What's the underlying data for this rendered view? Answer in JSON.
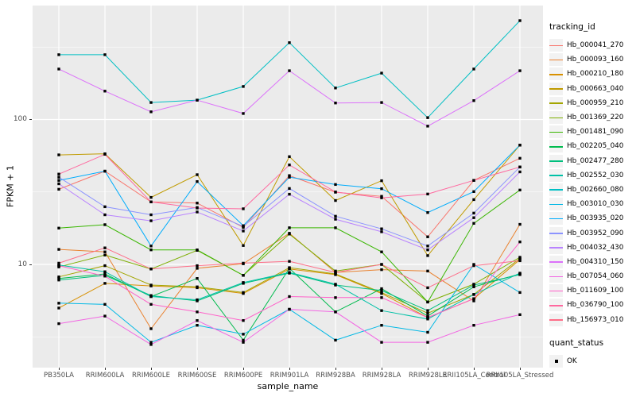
{
  "chart_data": {
    "type": "line",
    "title": "",
    "xlabel": "sample_name",
    "ylabel": "FPKM + 1",
    "y_scale": "log10",
    "ylim": [
      1.94,
      611
    ],
    "y_major_ticks": [
      10,
      100
    ],
    "y_minor_gridlines": [
      3.162,
      31.62,
      316.2
    ],
    "grid": "white-on-gray",
    "panel_bg": "#EBEBEB",
    "grid_color": "#FFFFFF",
    "marker": "black-square",
    "categories": [
      "PB350LA",
      "RRIM600LA",
      "RRIM600LE",
      "RRIM600SE",
      "RRIM600PE",
      "RRIM901LA",
      "RRIM928BA",
      "RRIM928LA",
      "RRIM928LE",
      "RRII105LA_Control",
      "RRII105LA_Stressed"
    ],
    "series": [
      {
        "name": "Hb_000041_270",
        "color": "#F8766D",
        "values": [
          33,
          44,
          27,
          26.5,
          18,
          41,
          31.5,
          29.5,
          15.5,
          38,
          54
        ]
      },
      {
        "name": "Hb_000093_160",
        "color": "#EA8331",
        "values": [
          12.7,
          12.2,
          3.6,
          9.4,
          10.1,
          16.4,
          8.8,
          9.2,
          9.0,
          5.6,
          18.9
        ]
      },
      {
        "name": "Hb_000210_180",
        "color": "#D89000",
        "values": [
          5.0,
          7.4,
          7.1,
          6.9,
          6.3,
          9.3,
          8.5,
          6.3,
          4.3,
          5.8,
          10.8
        ]
      },
      {
        "name": "Hb_000663_040",
        "color": "#C09B00",
        "values": [
          57,
          58,
          29,
          41.6,
          13.5,
          55.4,
          27.6,
          37.8,
          11.5,
          28,
          66.5
        ]
      },
      {
        "name": "Hb_000959_210",
        "color": "#A3A500",
        "values": [
          8.2,
          9.8,
          7.2,
          7.0,
          6.4,
          9.5,
          8.6,
          6.4,
          4.6,
          6.2,
          11.0
        ]
      },
      {
        "name": "Hb_001369_220",
        "color": "#7CAE00",
        "values": [
          9.6,
          11.6,
          9.3,
          12.5,
          8.4,
          16.2,
          9.0,
          10.0,
          5.5,
          7.3,
          11.2
        ]
      },
      {
        "name": "Hb_001481_090",
        "color": "#39B600",
        "values": [
          17.8,
          18.8,
          12.6,
          12.6,
          8.4,
          17.9,
          17.9,
          12.2,
          5.5,
          19.2,
          32.6
        ]
      },
      {
        "name": "Hb_002205_040",
        "color": "#00BB4E",
        "values": [
          8.0,
          8.6,
          6.0,
          8.0,
          3.0,
          9.4,
          4.7,
          6.8,
          4.4,
          7.0,
          8.6
        ]
      },
      {
        "name": "Hb_002477_280",
        "color": "#00BF7D",
        "values": [
          7.8,
          8.4,
          6.1,
          5.6,
          7.4,
          8.7,
          7.2,
          6.6,
          4.8,
          7.2,
          8.5
        ]
      },
      {
        "name": "Hb_002552_030",
        "color": "#00C1A7",
        "values": [
          9.9,
          8.9,
          6.0,
          5.7,
          7.5,
          8.8,
          7.3,
          4.8,
          4.2,
          6.2,
          8.7
        ]
      },
      {
        "name": "Hb_002660_080",
        "color": "#00BFC4",
        "values": [
          280,
          280,
          131,
          136,
          169,
          339,
          165,
          209,
          103,
          223,
          481
        ]
      },
      {
        "name": "Hb_003010_030",
        "color": "#00B8E5",
        "values": [
          5.4,
          5.3,
          2.9,
          3.8,
          3.3,
          4.9,
          3.0,
          3.8,
          3.4,
          10.0,
          6.4
        ]
      },
      {
        "name": "Hb_003935_020",
        "color": "#00ACFC",
        "values": [
          38,
          44,
          13.4,
          37.3,
          18.5,
          40,
          35.6,
          33.3,
          22.8,
          31.8,
          66.6
        ]
      },
      {
        "name": "Hb_003952_090",
        "color": "#8B93FF",
        "values": [
          40,
          25,
          22,
          24.7,
          18.3,
          33.4,
          21.5,
          17.6,
          13.4,
          22.6,
          47
        ]
      },
      {
        "name": "Hb_004032_430",
        "color": "#B983FF",
        "values": [
          36,
          22,
          20,
          23,
          17,
          30.5,
          20.5,
          16.8,
          12.6,
          21,
          43.5
        ]
      },
      {
        "name": "Hb_004310_150",
        "color": "#DC71FA",
        "values": [
          223,
          157,
          113,
          136,
          110,
          217,
          130,
          131,
          90,
          135,
          217
        ]
      },
      {
        "name": "Hb_007054_060",
        "color": "#F266E3",
        "values": [
          3.9,
          4.4,
          2.8,
          4.1,
          2.9,
          4.9,
          4.7,
          2.9,
          2.9,
          3.8,
          4.5
        ]
      },
      {
        "name": "Hb_011609_100",
        "color": "#FF61C9",
        "values": [
          9.8,
          8.3,
          5.3,
          4.7,
          4.1,
          6.0,
          5.9,
          5.9,
          4.3,
          5.8,
          14.3
        ]
      },
      {
        "name": "Hb_036790_100",
        "color": "#FF689F",
        "values": [
          42,
          57.5,
          27,
          24.5,
          24.2,
          48.6,
          31.6,
          28.8,
          30.6,
          38,
          47
        ]
      },
      {
        "name": "Hb_156973_010",
        "color": "#FE6E88",
        "values": [
          10.2,
          13,
          9.3,
          9.8,
          10.2,
          10.5,
          8.8,
          10.0,
          6.9,
          9.8,
          10.6
        ]
      }
    ],
    "legend_position": "right",
    "legend_title": "tracking_id",
    "legend2_title": "quant_status",
    "legend2_items": [
      {
        "label": "OK",
        "symbol": "black-square"
      }
    ]
  },
  "axes": {
    "y_title": "FPKM + 1",
    "x_title": "sample_name",
    "y_tick_labels": [
      "100",
      "10"
    ]
  }
}
